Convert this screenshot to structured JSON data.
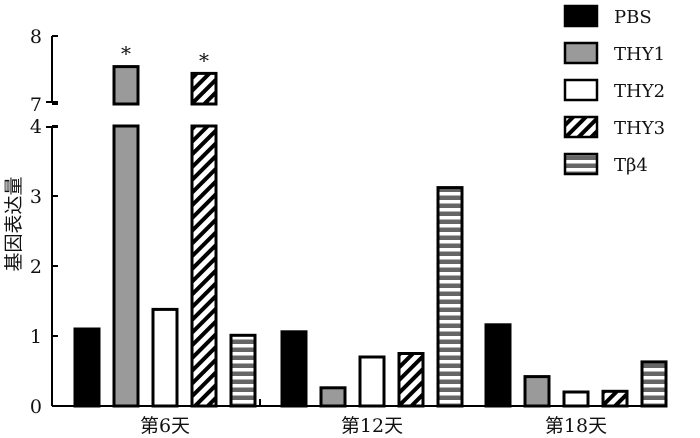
{
  "chart_data": {
    "type": "bar",
    "ylabel": "基因表达量",
    "categories": [
      "第6天",
      "第12天",
      "第18天"
    ],
    "series": [
      {
        "name": "PBS",
        "fill": "solid",
        "values": [
          1.1,
          1.06,
          1.16
        ]
      },
      {
        "name": "THY1",
        "fill": "gray",
        "values": [
          7.55,
          0.26,
          0.42
        ]
      },
      {
        "name": "THY2",
        "fill": "white",
        "values": [
          1.38,
          0.7,
          0.2
        ]
      },
      {
        "name": "THY3",
        "fill": "diagonal",
        "values": [
          7.45,
          0.75,
          0.21
        ]
      },
      {
        "name": "Tβ4",
        "fill": "horizontal-stripes",
        "values": [
          1.01,
          3.12,
          0.63
        ]
      }
    ],
    "ylim_lower": [
      0,
      4
    ],
    "ylim_upper": [
      7,
      8
    ],
    "yticks_lower": [
      "0",
      "1",
      "2",
      "3",
      "4"
    ],
    "yticks_upper": [
      "7",
      "8"
    ],
    "axis_break": true,
    "annotations": [
      {
        "category": "第6天",
        "series": "THY1",
        "text": "*"
      },
      {
        "category": "第6天",
        "series": "THY3",
        "text": "*"
      }
    ],
    "legend_position": "right",
    "grid": false,
    "colors": {
      "dark": "#000000",
      "gray": "#9a9a9a",
      "light": "#ffffff"
    }
  }
}
